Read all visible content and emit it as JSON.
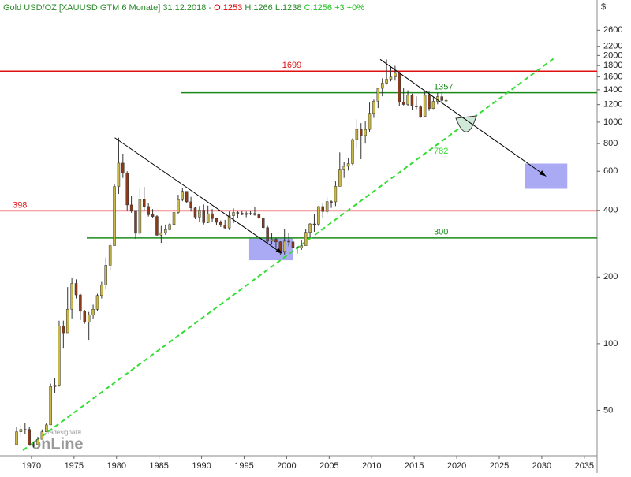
{
  "chart_data": {
    "type": "candlestick",
    "title_parts": [
      {
        "text": "Gold USD/OZ [XAUUSD GTM  6 Monate] 31.12.2018 - ",
        "color": "#2a8a2a"
      },
      {
        "text": "O:1253",
        "color": "#e00000"
      },
      {
        "text": " H:1266 L:1238 ",
        "color": "#2a8a2a"
      },
      {
        "text": "C:1256 +3 +0%",
        "color": "#20c020"
      }
    ],
    "y_unit": "$",
    "logo": [
      "tradesignal®",
      "onLine"
    ],
    "log_scale": true,
    "xlim": [
      1966.3,
      2036.5
    ],
    "ylim": [
      31.2,
      3560
    ],
    "xticks": [
      1970,
      1975,
      1980,
      1985,
      1990,
      1995,
      2000,
      2005,
      2010,
      2015,
      2020,
      2025,
      2030,
      2035
    ],
    "yticks": [
      50,
      100,
      200,
      400,
      600,
      800,
      1000,
      1200,
      1400,
      1600,
      1800,
      2000,
      2200,
      2600
    ],
    "up_color": "#c8b84a",
    "down_color": "#8b3a1a",
    "x": [
      1968,
      1968.5,
      1969,
      1969.5,
      1970,
      1970.5,
      1971,
      1971.5,
      1972,
      1972.5,
      1973,
      1973.5,
      1974,
      1974.5,
      1975,
      1975.5,
      1976,
      1976.5,
      1977,
      1977.5,
      1978,
      1978.5,
      1979,
      1979.5,
      1980,
      1980.5,
      1981,
      1981.5,
      1982,
      1982.5,
      1983,
      1983.5,
      1984,
      1984.5,
      1985,
      1985.5,
      1986,
      1986.5,
      1987,
      1987.5,
      1988,
      1988.5,
      1989,
      1989.5,
      1990,
      1990.5,
      1991,
      1991.5,
      1992,
      1992.5,
      1993,
      1993.5,
      1994,
      1994.5,
      1995,
      1995.5,
      1996,
      1996.5,
      1997,
      1997.5,
      1998,
      1998.5,
      1999,
      1999.5,
      2000,
      2000.5,
      2001,
      2001.5,
      2002,
      2002.5,
      2003,
      2003.5,
      2004,
      2004.5,
      2005,
      2005.5,
      2006,
      2006.5,
      2007,
      2007.5,
      2008,
      2008.5,
      2009,
      2009.5,
      2010,
      2010.5,
      2011,
      2011.5,
      2012,
      2012.5,
      2013,
      2013.5,
      2014,
      2014.5,
      2015,
      2015.5,
      2016,
      2016.5,
      2017,
      2017.5,
      2018,
      2018.5
    ],
    "open": [
      35,
      40,
      41,
      41,
      35,
      35,
      37,
      40,
      43,
      64,
      65,
      120,
      112,
      143,
      187,
      166,
      140,
      125,
      135,
      143,
      165,
      184,
      226,
      277,
      512,
      653,
      590,
      423,
      400,
      315,
      448,
      416,
      382,
      375,
      309,
      317,
      327,
      345,
      391,
      447,
      487,
      437,
      410,
      373,
      401,
      352,
      386,
      367,
      353,
      343,
      333,
      378,
      391,
      388,
      383,
      387,
      387,
      382,
      369,
      334,
      290,
      296,
      288,
      261,
      290,
      288,
      272,
      270,
      277,
      318,
      347,
      346,
      416,
      395,
      438,
      437,
      513,
      613,
      632,
      650,
      834,
      928,
      870,
      927,
      1096,
      1244,
      1421,
      1500,
      1563,
      1598,
      1675,
      1234,
      1202,
      1322,
      1184,
      1172,
      1061,
      1322,
      1151,
      1242,
      1303,
      1253
    ],
    "high": [
      42,
      43,
      44,
      42,
      36,
      38,
      41,
      44,
      66,
      70,
      127,
      127,
      180,
      198,
      195,
      168,
      142,
      139,
      150,
      168,
      190,
      245,
      285,
      524,
      850,
      720,
      600,
      465,
      400,
      500,
      510,
      430,
      405,
      380,
      340,
      345,
      350,
      440,
      470,
      502,
      488,
      460,
      415,
      418,
      425,
      420,
      405,
      370,
      360,
      362,
      395,
      408,
      398,
      400,
      395,
      396,
      416,
      390,
      370,
      340,
      316,
      300,
      290,
      330,
      315,
      290,
      275,
      295,
      330,
      350,
      385,
      418,
      430,
      457,
      444,
      540,
      730,
      660,
      690,
      845,
      1030,
      990,
      1007,
      1226,
      1265,
      1431,
      1577,
      1920,
      1790,
      1796,
      1697,
      1434,
      1392,
      1345,
      1307,
      1191,
      1377,
      1375,
      1296,
      1357,
      1366,
      1266
    ],
    "low": [
      35,
      38,
      39,
      35,
      34,
      35,
      37,
      40,
      43,
      60,
      64,
      95,
      112,
      130,
      160,
      128,
      123,
      104,
      130,
      140,
      160,
      176,
      216,
      277,
      474,
      560,
      400,
      390,
      297,
      310,
      400,
      375,
      370,
      307,
      285,
      310,
      325,
      340,
      385,
      440,
      430,
      395,
      365,
      355,
      345,
      350,
      355,
      343,
      336,
      328,
      326,
      350,
      370,
      380,
      372,
      380,
      378,
      365,
      330,
      282,
      280,
      272,
      252,
      253,
      275,
      263,
      255,
      265,
      277,
      300,
      320,
      340,
      372,
      385,
      410,
      418,
      512,
      560,
      605,
      640,
      760,
      680,
      800,
      900,
      1045,
      1157,
      1308,
      1478,
      1527,
      1540,
      1180,
      1190,
      1182,
      1132,
      1142,
      1046,
      1061,
      1123,
      1146,
      1204,
      1238,
      1238
    ],
    "close": [
      40,
      41,
      41,
      35,
      35,
      37,
      40,
      43,
      64,
      65,
      120,
      112,
      143,
      187,
      166,
      140,
      125,
      135,
      143,
      165,
      184,
      226,
      277,
      512,
      653,
      590,
      423,
      400,
      315,
      448,
      416,
      382,
      375,
      309,
      317,
      327,
      345,
      391,
      447,
      487,
      437,
      410,
      373,
      401,
      352,
      386,
      367,
      353,
      343,
      333,
      378,
      391,
      388,
      383,
      387,
      387,
      382,
      369,
      334,
      290,
      296,
      288,
      261,
      290,
      288,
      272,
      270,
      277,
      318,
      347,
      346,
      416,
      395,
      438,
      437,
      513,
      613,
      632,
      650,
      834,
      928,
      870,
      927,
      1096,
      1244,
      1421,
      1500,
      1563,
      1598,
      1675,
      1234,
      1202,
      1322,
      1184,
      1172,
      1061,
      1322,
      1151,
      1242,
      1303,
      1253,
      1256
    ],
    "levels": [
      {
        "value": 1699,
        "color": "#e01010"
      },
      {
        "value": 398,
        "color": "#e01010"
      },
      {
        "value": 1357,
        "color": "#1a8a1a"
      },
      {
        "value": 300,
        "color": "#1a8a1a"
      }
    ],
    "trendline": {
      "x": [
        1969,
        2031.5
      ],
      "y": [
        33,
        1950
      ],
      "color": "#33dd33",
      "label": "782"
    },
    "arrows": [
      {
        "x": [
          1979.8,
          1999.5
        ],
        "y": [
          850,
          255
        ]
      },
      {
        "x": [
          2011,
          2030.5
        ],
        "y": [
          1920,
          570
        ]
      }
    ],
    "boxes": [
      {
        "x": [
          1995.6,
          2000.8
        ],
        "y": [
          238,
          300
        ]
      },
      {
        "x": [
          2028,
          2033
        ],
        "y": [
          500,
          650
        ]
      }
    ]
  }
}
